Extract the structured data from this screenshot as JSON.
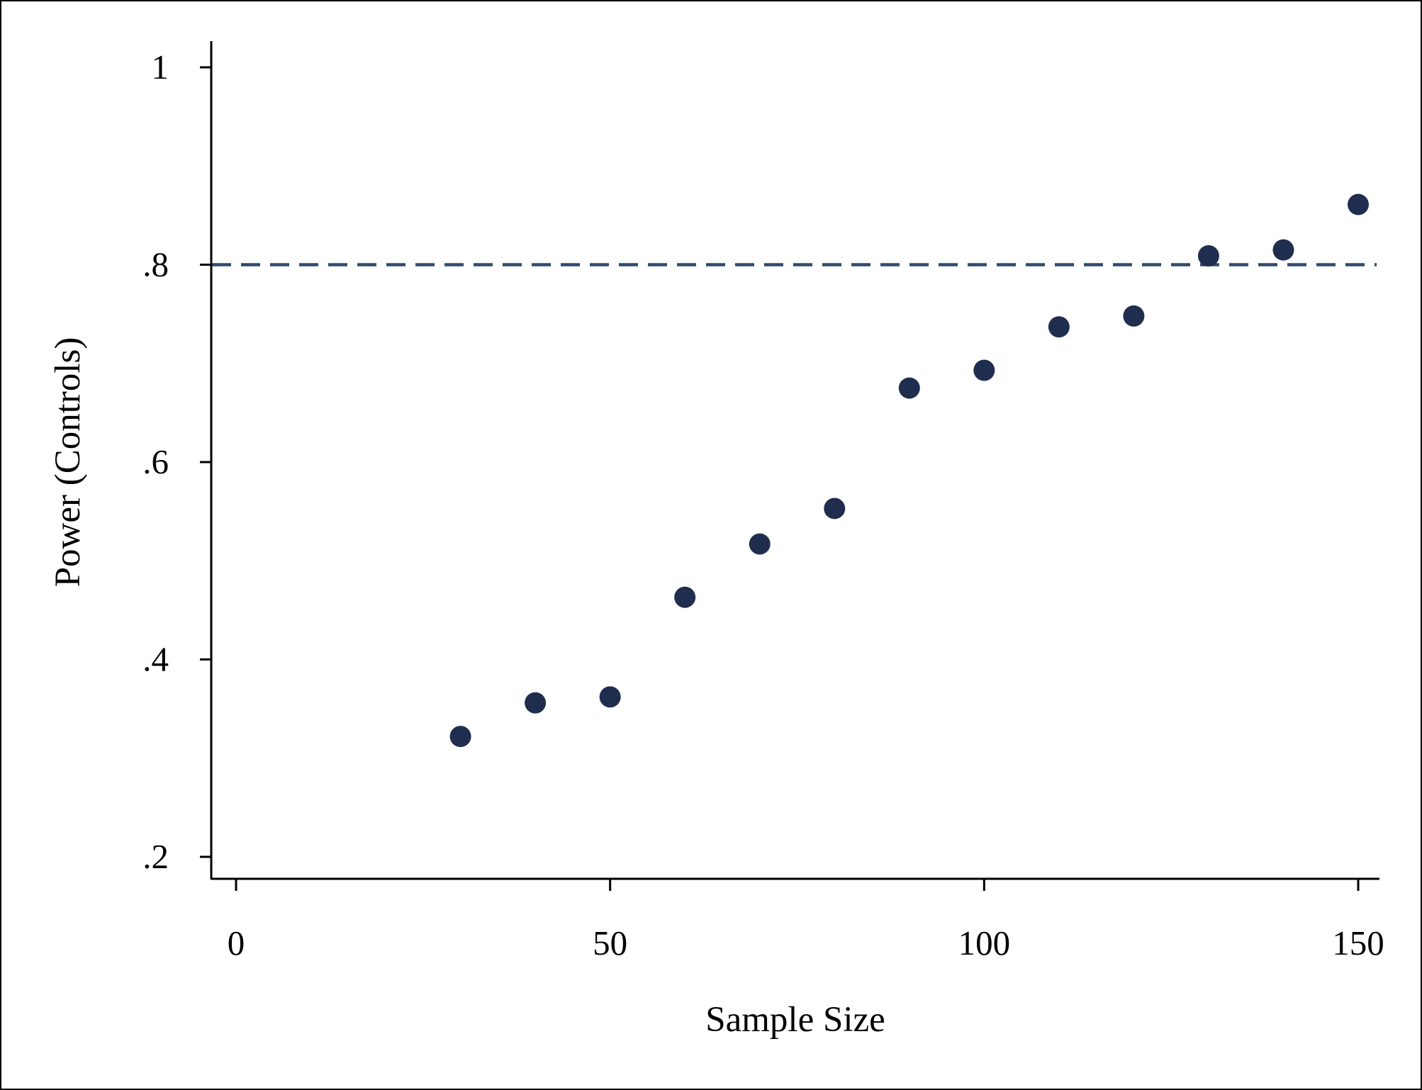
{
  "chart_data": {
    "type": "scatter",
    "title": "",
    "xlabel": "Sample Size",
    "ylabel": "Power (Controls)",
    "xlim": [
      0,
      150
    ],
    "ylim": [
      0.2,
      1
    ],
    "x_ticks": [
      0,
      50,
      100,
      150
    ],
    "x_tick_labels": [
      "0",
      "50",
      "100",
      "150"
    ],
    "y_ticks": [
      0.2,
      0.4,
      0.6,
      0.8,
      1
    ],
    "y_tick_labels": [
      ".2",
      ".4",
      ".6",
      ".8",
      "1"
    ],
    "grid": false,
    "legend": "none",
    "series": [
      {
        "x": [
          30,
          40,
          50,
          60,
          70,
          80,
          90,
          100,
          110,
          120,
          130,
          140,
          150
        ],
        "y": [
          0.322,
          0.356,
          0.362,
          0.463,
          0.517,
          0.553,
          0.675,
          0.693,
          0.737,
          0.748,
          0.809,
          0.815,
          0.861
        ],
        "color": "#1f2d4e"
      }
    ],
    "reference_line": {
      "y": 0.8,
      "style": "dashed",
      "color": "#2d4c6e"
    }
  }
}
